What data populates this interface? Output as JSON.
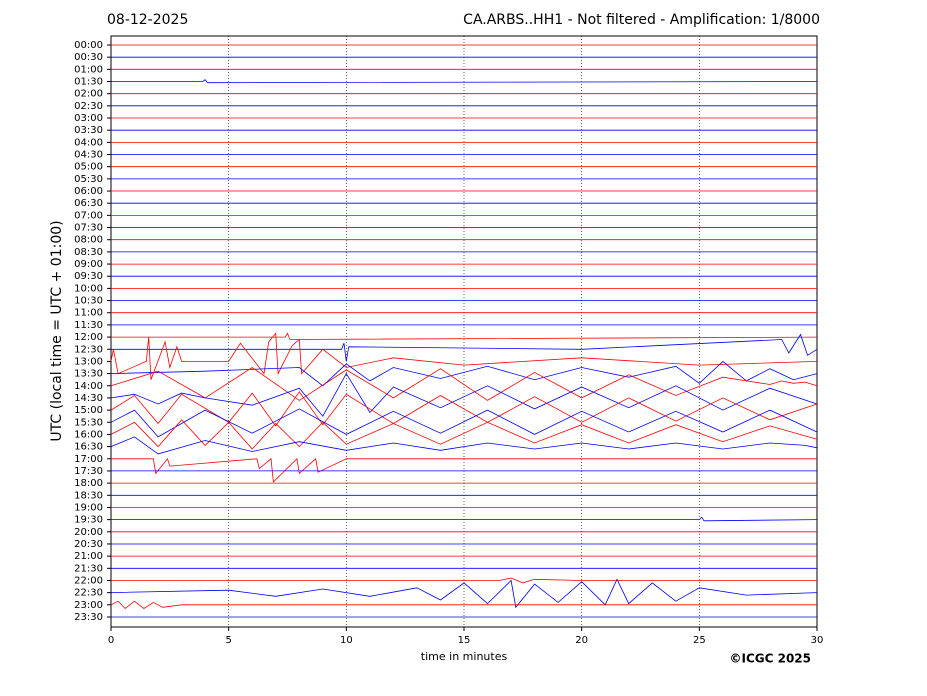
{
  "chart_data": {
    "type": "helicorder",
    "date": "08-12-2025",
    "title": "CA.ARBS..HH1 - Not filtered - Amplification: 1/8000",
    "y_label": "UTC (local time = UTC + 01:00)",
    "x_label": "time in minutes",
    "copyright": "©ICGC 2025",
    "xlim": [
      0,
      30
    ],
    "xticks": [
      0,
      5,
      10,
      15,
      20,
      25,
      30
    ],
    "grid": true,
    "categories": [
      "00:00",
      "00:30",
      "01:00",
      "01:30",
      "02:00",
      "02:30",
      "03:00",
      "03:30",
      "04:00",
      "04:30",
      "05:00",
      "05:30",
      "06:00",
      "06:30",
      "07:00",
      "07:30",
      "08:00",
      "08:30",
      "09:00",
      "09:30",
      "10:00",
      "10:30",
      "11:00",
      "11:30",
      "12:00",
      "12:30",
      "13:00",
      "13:30",
      "14:00",
      "14:30",
      "15:00",
      "15:30",
      "16:00",
      "16:30",
      "17:00",
      "17:30",
      "18:00",
      "18:30",
      "19:00",
      "19:30",
      "20:00",
      "20:30",
      "21:00",
      "21:30",
      "22:00",
      "22:30",
      "23:00",
      "23:30"
    ],
    "series": [
      {
        "color": "#ff0000",
        "x": [
          0,
          30
        ],
        "values": [
          0,
          0
        ]
      },
      {
        "color": "#0000ff",
        "x": [
          0,
          30
        ],
        "values": [
          0,
          0
        ]
      },
      {
        "color": "#ff0000",
        "x": [
          0,
          30
        ],
        "values": [
          0,
          0
        ]
      },
      {
        "color": "#0000ff",
        "x": [
          0,
          3.9,
          4,
          4.1,
          30
        ],
        "values": [
          0,
          0,
          0.15,
          -0.1,
          0
        ]
      },
      {
        "color": "#ff0000",
        "x": [
          0,
          30
        ],
        "values": [
          0,
          0
        ]
      },
      {
        "color": "#0000ff",
        "x": [
          0,
          30
        ],
        "values": [
          0,
          0
        ]
      },
      {
        "color": "#ff0000",
        "x": [
          0,
          30
        ],
        "values": [
          0,
          0
        ]
      },
      {
        "color": "#0000ff",
        "x": [
          0,
          30
        ],
        "values": [
          0,
          0
        ]
      },
      {
        "color": "#ff0000",
        "x": [
          0,
          30
        ],
        "values": [
          0,
          0
        ]
      },
      {
        "color": "#0000ff",
        "x": [
          0,
          30
        ],
        "values": [
          0,
          0
        ]
      },
      {
        "color": "#ff0000",
        "x": [
          0,
          30
        ],
        "values": [
          0,
          0
        ]
      },
      {
        "color": "#0000ff",
        "x": [
          0,
          30
        ],
        "values": [
          0,
          0
        ]
      },
      {
        "color": "#ff0000",
        "x": [
          0,
          30
        ],
        "values": [
          0,
          0
        ]
      },
      {
        "color": "#0000ff",
        "x": [
          0,
          30
        ],
        "values": [
          0,
          0
        ]
      },
      {
        "color": "#ff0000",
        "x": [
          0,
          30
        ],
        "values": [
          0,
          0
        ]
      },
      {
        "color": "#0000ff",
        "x": [
          0,
          30
        ],
        "values": [
          0,
          0
        ]
      },
      {
        "color": "#ff0000",
        "x": [
          0,
          30
        ],
        "values": [
          0,
          0
        ]
      },
      {
        "color": "#0000ff",
        "x": [
          0,
          30
        ],
        "values": [
          0,
          0
        ]
      },
      {
        "color": "#ff0000",
        "x": [
          0,
          30
        ],
        "values": [
          0,
          0
        ]
      },
      {
        "color": "#0000ff",
        "x": [
          0,
          30
        ],
        "values": [
          0,
          0
        ]
      },
      {
        "color": "#ff0000",
        "x": [
          0,
          30
        ],
        "values": [
          0,
          0
        ]
      },
      {
        "color": "#0000ff",
        "x": [
          0,
          30
        ],
        "values": [
          0,
          0
        ]
      },
      {
        "color": "#ff0000",
        "x": [
          0,
          30
        ],
        "values": [
          0,
          0
        ]
      },
      {
        "color": "#0000ff",
        "x": [
          0,
          30
        ],
        "values": [
          0,
          0
        ]
      },
      {
        "color": "#ff0000",
        "x": [
          0,
          7.4,
          7.5,
          7.6,
          30
        ],
        "values": [
          0,
          0,
          0.3,
          -0.2,
          0
        ]
      },
      {
        "color": "#0000ff",
        "x": [
          0,
          9.8,
          9.9,
          10,
          10.1,
          20,
          28.5,
          28.8,
          29.3,
          29.6,
          30
        ],
        "values": [
          0,
          0,
          0.5,
          -1,
          0.2,
          0,
          0.8,
          -0.3,
          1.2,
          -0.5,
          0
        ]
      },
      {
        "color": "#ff0000",
        "x": [
          0,
          0.1,
          0.3,
          1.5,
          1.6,
          1.7,
          2.3,
          2.5,
          2.8,
          3,
          5,
          5.5,
          6.5,
          6.7,
          7,
          7.1,
          7.7,
          8,
          8.1,
          9,
          10,
          12,
          15,
          20,
          25,
          30
        ],
        "values": [
          0,
          1,
          -1,
          0,
          2,
          -1.5,
          1.6,
          -0.5,
          1.2,
          0,
          0,
          1.5,
          -1,
          1.6,
          2.3,
          -1,
          1.3,
          1.8,
          -1,
          1,
          -0.5,
          0.3,
          -0.3,
          0.3,
          -0.3,
          0
        ]
      },
      {
        "color": "#0000ff",
        "x": [
          0,
          4,
          8,
          9,
          10,
          11,
          12,
          14,
          16,
          18,
          20,
          22,
          24,
          25,
          26,
          27,
          28,
          29,
          30
        ],
        "values": [
          0,
          0.2,
          0.5,
          -1,
          0.8,
          -0.6,
          0.5,
          -0.4,
          0.6,
          -0.5,
          0.5,
          -0.3,
          0.6,
          -0.8,
          1,
          -0.6,
          0.4,
          -0.5,
          0
        ]
      },
      {
        "color": "#ff0000",
        "x": [
          0,
          2,
          4,
          6,
          8,
          10,
          12,
          14,
          16,
          18,
          20,
          22,
          24,
          26,
          28,
          28.5,
          29,
          29.5,
          30
        ],
        "values": [
          0,
          1.2,
          -1,
          1.5,
          -1.2,
          1.3,
          -1,
          1.4,
          -1.2,
          1.1,
          -1,
          0.9,
          -0.8,
          0.7,
          0.1,
          0.4,
          0.2,
          0.3,
          0
        ]
      },
      {
        "color": "#0000ff",
        "x": [
          0,
          1,
          2,
          3,
          4,
          6,
          8,
          9,
          10,
          11,
          12,
          14,
          16,
          18,
          20,
          22,
          24,
          26,
          28,
          30
        ],
        "values": [
          0,
          0.3,
          -0.5,
          0.4,
          0,
          -0.6,
          0.8,
          -1.5,
          2,
          -1.2,
          0.9,
          -0.8,
          1,
          -0.9,
          0.9,
          -0.8,
          1,
          -1,
          0.8,
          -0.5
        ]
      },
      {
        "color": "#ff0000",
        "x": [
          0,
          1,
          2,
          3,
          5,
          6,
          7,
          8,
          9,
          10,
          12,
          14,
          16,
          18,
          20,
          22,
          24,
          26,
          28,
          30
        ],
        "values": [
          0,
          1.2,
          -1.1,
          1.3,
          -1,
          1.4,
          -1.3,
          1.5,
          -1.2,
          1.3,
          -1.1,
          1.2,
          -1,
          1.1,
          -1,
          1,
          -0.9,
          1,
          -0.8,
          0.5
        ]
      },
      {
        "color": "#0000ff",
        "x": [
          0,
          1,
          2,
          4,
          6,
          8,
          10,
          12,
          14,
          16,
          18,
          20,
          22,
          24,
          26,
          28,
          30
        ],
        "values": [
          0,
          1,
          -1.2,
          1,
          -0.9,
          1.1,
          -1,
          0.9,
          -0.9,
          1,
          -1,
          0.9,
          -0.8,
          0.9,
          -0.8,
          1,
          -0.8
        ]
      },
      {
        "color": "#ff0000",
        "x": [
          0,
          1,
          2,
          3,
          4,
          5,
          6,
          7,
          8,
          9,
          10,
          12,
          14,
          16,
          18,
          20,
          22,
          24,
          26,
          28,
          30
        ],
        "values": [
          0,
          1,
          -1,
          1.2,
          -0.9,
          1,
          -1.2,
          0.9,
          -1,
          1,
          -0.8,
          0.9,
          -0.8,
          1,
          -0.7,
          0.8,
          -0.7,
          0.8,
          -0.6,
          0.7,
          -0.4
        ]
      },
      {
        "color": "#0000ff",
        "x": [
          0,
          1,
          2,
          4,
          6,
          8,
          10,
          12,
          14,
          16,
          18,
          20,
          22,
          24,
          26,
          28,
          29.5,
          30
        ],
        "values": [
          0,
          0.8,
          -0.6,
          0.5,
          -0.4,
          0.4,
          -0.3,
          0.3,
          -0.3,
          0.3,
          -0.2,
          0.3,
          -0.2,
          0.3,
          -0.2,
          0.3,
          0.1,
          -0.1
        ]
      },
      {
        "color": "#ff0000",
        "x": [
          0,
          1.8,
          1.9,
          2.4,
          2.5,
          6.2,
          6.3,
          6.8,
          6.9,
          7.9,
          8,
          8.7,
          8.8,
          10,
          20,
          30
        ],
        "values": [
          0,
          0,
          -1.2,
          0,
          -0.6,
          0,
          -0.8,
          0,
          -1.9,
          0,
          -1.2,
          0,
          -1.1,
          0,
          0,
          0
        ]
      },
      {
        "color": "#0000ff",
        "x": [
          0,
          30
        ],
        "values": [
          0,
          0
        ]
      },
      {
        "color": "#ff0000",
        "x": [
          0,
          30
        ],
        "values": [
          0,
          0
        ]
      },
      {
        "color": "#0000ff",
        "x": [
          0,
          30
        ],
        "values": [
          0,
          0
        ]
      },
      {
        "color": "#ff0000",
        "x": [
          0,
          30
        ],
        "values": [
          0,
          0
        ]
      },
      {
        "color": "#0000ff",
        "x": [
          0,
          25,
          25.1,
          25.2,
          30
        ],
        "values": [
          0,
          0,
          0.2,
          -0.1,
          0
        ]
      },
      {
        "color": "#ff0000",
        "x": [
          0,
          30
        ],
        "values": [
          0,
          0
        ]
      },
      {
        "color": "#0000ff",
        "x": [
          0,
          30
        ],
        "values": [
          0,
          0
        ]
      },
      {
        "color": "#ff0000",
        "x": [
          0,
          30
        ],
        "values": [
          0,
          0
        ]
      },
      {
        "color": "#0000ff",
        "x": [
          0,
          30
        ],
        "values": [
          0,
          0
        ]
      },
      {
        "color": "#ff0000",
        "x": [
          0,
          16.5,
          17,
          17.5,
          18,
          20,
          30
        ],
        "values": [
          0,
          0,
          0.2,
          -0.2,
          0.1,
          0,
          0
        ]
      },
      {
        "color": "#0000ff",
        "x": [
          0,
          5,
          7,
          9,
          11,
          13,
          14,
          15,
          16,
          17,
          17.2,
          18,
          19,
          20,
          21,
          21.5,
          22,
          23,
          24,
          25,
          27,
          30
        ],
        "values": [
          0,
          0.2,
          -0.3,
          0.3,
          -0.3,
          0.4,
          -0.6,
          0.8,
          -0.9,
          1,
          -1.2,
          0.7,
          -0.8,
          0.9,
          -1,
          1.1,
          -0.9,
          0.8,
          -0.7,
          0.4,
          -0.2,
          0
        ]
      },
      {
        "color": "#ff0000",
        "x": [
          0,
          0.3,
          0.6,
          1,
          1.4,
          1.8,
          2.2,
          3,
          30
        ],
        "values": [
          0,
          0.3,
          -0.3,
          0.3,
          -0.3,
          0.2,
          -0.2,
          0,
          0
        ]
      },
      {
        "color": "#0000ff",
        "x": [
          0,
          30
        ],
        "values": [
          0,
          0
        ]
      }
    ]
  }
}
